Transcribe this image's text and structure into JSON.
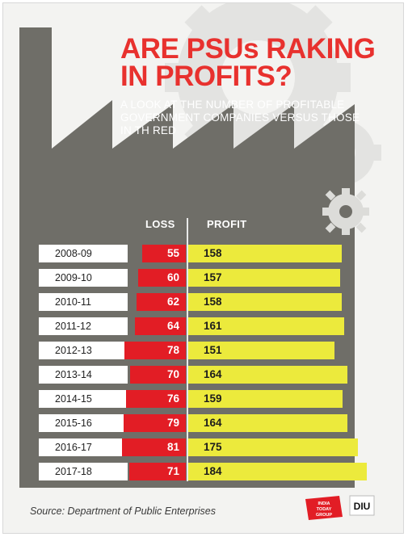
{
  "title": "ARE PSUs RAKING IN PROFITS?",
  "subtitle": "A LOOK AT THE NUMBER OF PROFITABLE GOVERNMENT COMPANIES VERSUS THOSE IN TH RED",
  "source": "Source: Department of Public Enterprises",
  "logos": {
    "india_today": "INDIA TODAY GROUP",
    "diu": "DIU"
  },
  "colors": {
    "loss": "#e21d25",
    "profit": "#ecea3c",
    "title": "#e8312e",
    "factory": "#6f6e68",
    "background": "#f3f3f1"
  },
  "chart_data": {
    "type": "bar",
    "orientation": "horizontal-diverging",
    "title": "ARE PSUs RAKING IN PROFITS?",
    "subtitle": "A LOOK AT THE NUMBER OF PROFITABLE GOVERNMENT COMPANIES VERSUS THOSE IN TH RED",
    "categories": [
      "2008-09",
      "2009-10",
      "2010-11",
      "2011-12",
      "2012-13",
      "2013-14",
      "2014-15",
      "2015-16",
      "2016-17",
      "2017-18"
    ],
    "series": [
      {
        "name": "LOSS",
        "values": [
          55,
          60,
          62,
          64,
          78,
          70,
          76,
          79,
          81,
          71
        ]
      },
      {
        "name": "PROFIT",
        "values": [
          158,
          157,
          158,
          161,
          151,
          164,
          159,
          164,
          175,
          184
        ]
      }
    ],
    "legend": "column headers at top"
  }
}
